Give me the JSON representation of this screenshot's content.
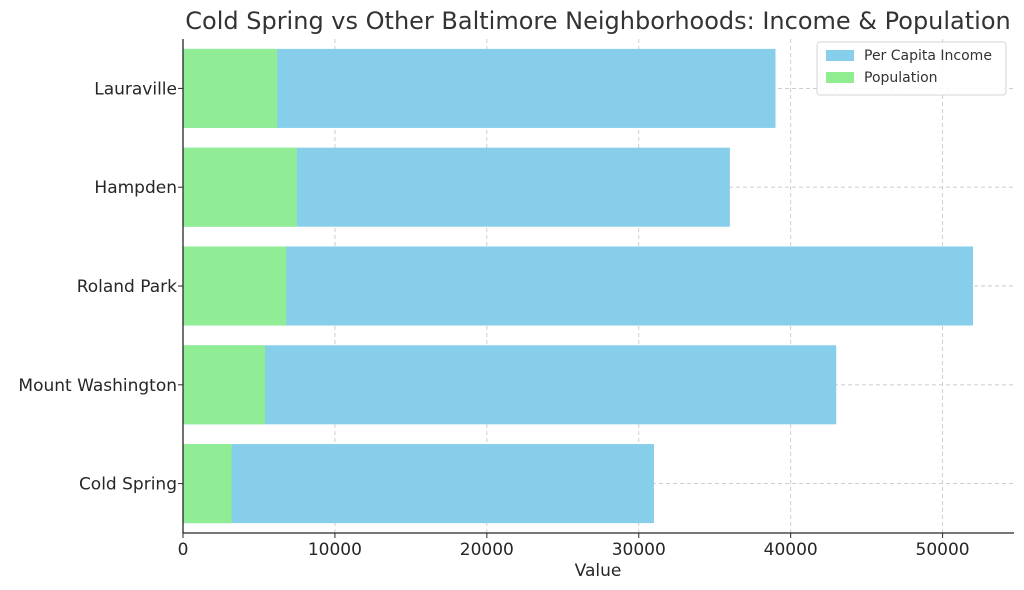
{
  "chart_data": {
    "type": "bar",
    "orientation": "horizontal",
    "title": "Cold Spring vs Other Baltimore Neighborhoods: Income & Population",
    "xlabel": "Value",
    "ylabel": "",
    "categories": [
      "Cold Spring",
      "Mount Washington",
      "Roland Park",
      "Hampden",
      "Lauraville"
    ],
    "series": [
      {
        "name": "Per Capita Income",
        "values": [
          31000,
          43000,
          52000,
          36000,
          39000
        ],
        "color": "#87ceeb"
      },
      {
        "name": "Population",
        "values": [
          3200,
          5400,
          6800,
          7500,
          6200
        ],
        "color": "#90ee90"
      }
    ],
    "xlim": [
      0,
      54700
    ],
    "xticks": [
      0,
      10000,
      20000,
      30000,
      40000,
      50000
    ],
    "grid": true,
    "legend_position": "top-right"
  }
}
